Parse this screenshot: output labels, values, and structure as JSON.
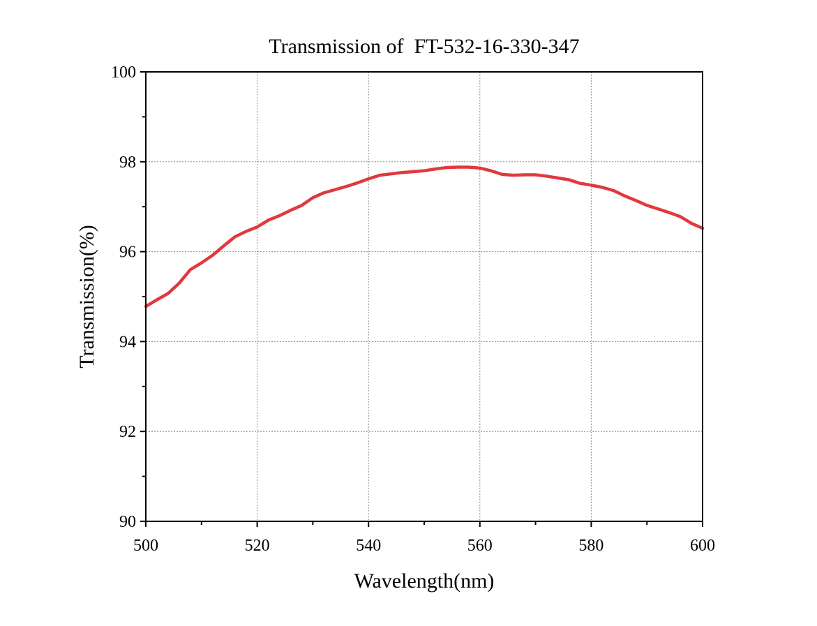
{
  "chart_data": {
    "type": "line",
    "title": "Transmission of  FT-532-16-330-347",
    "xlabel": "Wavelength(nm)",
    "ylabel": "Transmission(%)",
    "xlim": [
      500,
      600
    ],
    "ylim": [
      90,
      100
    ],
    "x_ticks": [
      500,
      520,
      540,
      560,
      580,
      600
    ],
    "y_ticks": [
      90,
      92,
      94,
      96,
      98,
      100
    ],
    "grid": true,
    "legend": "none",
    "series": [
      {
        "color": "#e0393e",
        "points": [
          [
            500,
            94.78
          ],
          [
            502,
            94.93
          ],
          [
            504,
            95.07
          ],
          [
            506,
            95.3
          ],
          [
            508,
            95.6
          ],
          [
            510,
            95.75
          ],
          [
            512,
            95.92
          ],
          [
            514,
            96.13
          ],
          [
            516,
            96.33
          ],
          [
            518,
            96.45
          ],
          [
            520,
            96.55
          ],
          [
            522,
            96.7
          ],
          [
            524,
            96.8
          ],
          [
            526,
            96.92
          ],
          [
            528,
            97.03
          ],
          [
            530,
            97.2
          ],
          [
            532,
            97.31
          ],
          [
            534,
            97.38
          ],
          [
            536,
            97.45
          ],
          [
            538,
            97.53
          ],
          [
            540,
            97.62
          ],
          [
            542,
            97.7
          ],
          [
            544,
            97.73
          ],
          [
            546,
            97.76
          ],
          [
            548,
            97.78
          ],
          [
            550,
            97.8
          ],
          [
            552,
            97.84
          ],
          [
            554,
            97.87
          ],
          [
            556,
            97.88
          ],
          [
            558,
            97.88
          ],
          [
            560,
            97.86
          ],
          [
            562,
            97.8
          ],
          [
            564,
            97.72
          ],
          [
            566,
            97.7
          ],
          [
            568,
            97.71
          ],
          [
            570,
            97.71
          ],
          [
            572,
            97.68
          ],
          [
            574,
            97.64
          ],
          [
            576,
            97.6
          ],
          [
            578,
            97.52
          ],
          [
            580,
            97.48
          ],
          [
            582,
            97.43
          ],
          [
            584,
            97.36
          ],
          [
            586,
            97.24
          ],
          [
            588,
            97.14
          ],
          [
            590,
            97.03
          ],
          [
            592,
            96.95
          ],
          [
            594,
            96.87
          ],
          [
            596,
            96.78
          ],
          [
            598,
            96.63
          ],
          [
            600,
            96.52
          ]
        ]
      }
    ]
  }
}
